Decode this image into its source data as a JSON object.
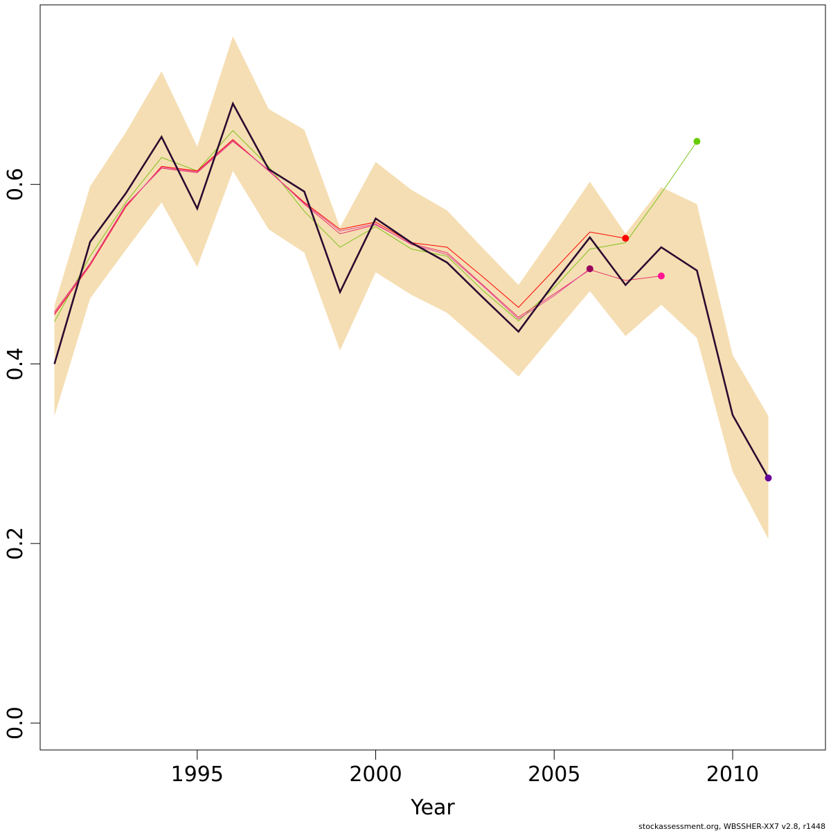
{
  "chart_data": {
    "type": "line",
    "title": "",
    "xlabel": "Year",
    "ylabel": "",
    "xlim": [
      1990.6,
      2012.6
    ],
    "ylim": [
      -0.03,
      0.8
    ],
    "x_ticks": [
      1995,
      2000,
      2005,
      2010
    ],
    "x_tick_labels": [
      "1995",
      "2000",
      "2005",
      "2010"
    ],
    "y_ticks": [
      0.0,
      0.2,
      0.4,
      0.6
    ],
    "y_tick_labels": [
      "0.0",
      "0.2",
      "0.4",
      "0.6"
    ],
    "grid": false,
    "legend": "none",
    "band": {
      "color": "#f5deb3",
      "x": [
        1991,
        1992,
        1993,
        1994,
        1995,
        1996,
        1997,
        1998,
        1999,
        2000,
        2001,
        2002,
        2003,
        2004,
        2005,
        2006,
        2007,
        2008,
        2009,
        2010,
        2011
      ],
      "lower": [
        0.342,
        0.473,
        0.527,
        0.58,
        0.508,
        0.615,
        0.55,
        0.524,
        0.415,
        0.502,
        0.477,
        0.457,
        0.422,
        0.386,
        0.434,
        0.481,
        0.431,
        0.466,
        0.429,
        0.28,
        0.205
      ],
      "upper": [
        0.465,
        0.598,
        0.658,
        0.726,
        0.642,
        0.765,
        0.684,
        0.661,
        0.552,
        0.625,
        0.594,
        0.571,
        0.529,
        0.488,
        0.545,
        0.603,
        0.545,
        0.597,
        0.578,
        0.41,
        0.342
      ]
    },
    "series": [
      {
        "color": "#7fc31c",
        "stroke_width": 1,
        "x": [
          1991,
          1992,
          1993,
          1994,
          1995,
          1996,
          1997,
          1998,
          1999,
          2000,
          2001,
          2002,
          2003,
          2004,
          2005,
          2006,
          2007,
          2008,
          2009
        ],
        "y": [
          0.447,
          0.52,
          0.58,
          0.63,
          0.615,
          0.66,
          0.62,
          0.57,
          0.53,
          0.553,
          0.528,
          0.52,
          0.482,
          0.448,
          0.485,
          0.528,
          0.535,
          0.59,
          0.648
        ],
        "endpoint": {
          "x": 2009,
          "y": 0.648,
          "color": "#66cc00"
        }
      },
      {
        "color": "#ff0000",
        "stroke_width": 1,
        "x": [
          1991,
          1992,
          1993,
          1994,
          1995,
          1996,
          1997,
          1998,
          1999,
          2000,
          2001,
          2002,
          2003,
          2004,
          2005,
          2006,
          2007
        ],
        "y": [
          0.455,
          0.51,
          0.575,
          0.62,
          0.615,
          0.65,
          0.615,
          0.58,
          0.55,
          0.558,
          0.535,
          0.53,
          0.497,
          0.463,
          0.505,
          0.547,
          0.54
        ],
        "endpoint": {
          "x": 2007,
          "y": 0.54,
          "color": "#ff0000"
        }
      },
      {
        "color": "#e8316a",
        "stroke_width": 1,
        "x": [
          1991,
          1992,
          1993,
          1994,
          1995,
          1996,
          1997,
          1998,
          1999,
          2000,
          2001,
          2002,
          2003,
          2004,
          2005,
          2006,
          2007,
          2008
        ],
        "y": [
          0.458,
          0.512,
          0.577,
          0.618,
          0.613,
          0.648,
          0.616,
          0.578,
          0.545,
          0.555,
          0.534,
          0.524,
          0.488,
          0.452,
          0.478,
          0.505,
          0.493,
          0.498
        ],
        "endpoint": {
          "x": 2008,
          "y": 0.498,
          "color": "#ff1493"
        }
      },
      {
        "color": "#e0449a",
        "stroke_width": 1,
        "x": [
          1991,
          1992,
          1993,
          1994,
          1995,
          1996,
          1997,
          1998,
          1999,
          2000,
          2001,
          2002,
          2003,
          2004,
          2005,
          2006
        ],
        "y": [
          0.456,
          0.511,
          0.576,
          0.619,
          0.614,
          0.649,
          0.615,
          0.579,
          0.548,
          0.556,
          0.533,
          0.522,
          0.487,
          0.45,
          0.476,
          0.506
        ],
        "endpoint": {
          "x": 2006,
          "y": 0.506,
          "color": "#99005c"
        }
      },
      {
        "color": "#2a0a30",
        "stroke_width": 2.6,
        "x": [
          1991,
          1992,
          1993,
          1994,
          1995,
          1996,
          1997,
          1998,
          1999,
          2000,
          2001,
          2002,
          2003,
          2004,
          2005,
          2006,
          2007,
          2008,
          2009,
          2010,
          2011
        ],
        "y": [
          0.4,
          0.536,
          0.59,
          0.653,
          0.573,
          0.69,
          0.617,
          0.592,
          0.48,
          0.562,
          0.535,
          0.513,
          0.474,
          0.436,
          0.49,
          0.541,
          0.488,
          0.53,
          0.504,
          0.343,
          0.273
        ],
        "endpoint": {
          "x": 2011,
          "y": 0.273,
          "color": "#660099"
        }
      }
    ]
  },
  "footer": "stockassessment.org, WBSSHER-XX7  v2.8, r1448"
}
